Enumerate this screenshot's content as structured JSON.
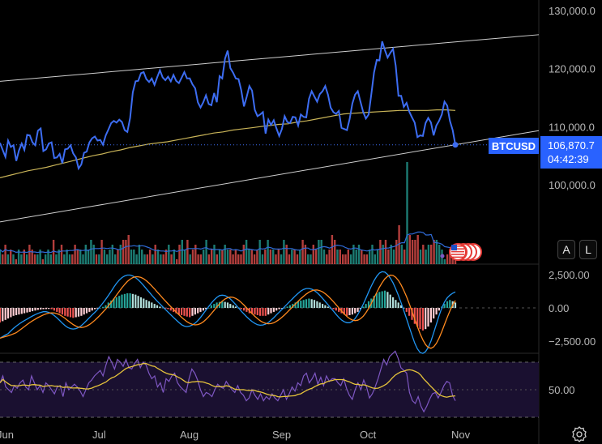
{
  "instrument": {
    "symbol": "BTCUSD",
    "last_price": "106,870.7",
    "countdown": "04:42:39"
  },
  "buttons": {
    "auto": "A",
    "log": "L"
  },
  "colors": {
    "price_line": "#3d6df2",
    "volume_up": "#26a69a",
    "volume_down": "#ef5350",
    "volume_ma": "#2f6bd8",
    "macd": "#2196f3",
    "signal": "#ff8a1f",
    "rsi": "#7e57c2",
    "rsi_ma": "#e5c33b",
    "long_ma": "#c9b458",
    "channel": "#cfcfcf"
  },
  "icons": {
    "settings": "settings-gear-icon",
    "event": "us-flag-event-icon"
  },
  "chart_data": [
    {
      "type": "line",
      "panel": "price",
      "x_labels": [
        "Jun",
        "Jul",
        "Aug",
        "Sep",
        "Oct",
        "Nov"
      ],
      "y_ticks": [
        "130,000.0",
        "120,000.0",
        "110,000.0",
        "100,000.0"
      ],
      "y_tick_values": [
        130000,
        120000,
        110000,
        100000
      ],
      "ylim": [
        86000,
        132000
      ],
      "grid": false,
      "series": [
        {
          "values": [
            107200,
            106000,
            104800,
            107600,
            106500,
            106800,
            104100,
            105900,
            107100,
            106000,
            108600,
            108500,
            107300,
            106800,
            109300,
            109700,
            105800,
            106100,
            107100,
            107300,
            104600,
            104700,
            105300,
            103700,
            106100,
            106200,
            106800,
            105400,
            104700,
            102800,
            103500,
            105500,
            105700,
            107300,
            108000,
            108300,
            107600,
            107700,
            106900,
            108500,
            109500,
            110600,
            111000,
            110700,
            111200,
            110800,
            109400,
            109100,
            111500,
            115900,
            117800,
            117900,
            119200,
            119400,
            118200,
            117700,
            118300,
            117200,
            118500,
            119700,
            118500,
            118000,
            118600,
            117800,
            118900,
            117900,
            117500,
            118400,
            119400,
            118300,
            118300,
            117300,
            116600,
            114200,
            113300,
            114200,
            115400,
            113900,
            113700,
            115800,
            114200,
            118700,
            118300,
            121700,
            123100,
            120100,
            119300,
            118300,
            118200,
            116300,
            113500,
            115100,
            117000,
            116200,
            112900,
            111800,
            112100,
            112500,
            108800,
            111200,
            110300,
            111100,
            109700,
            108400,
            109600,
            111800,
            110800,
            110600,
            111700,
            111600,
            110200,
            112100,
            111700,
            111600,
            114800,
            116100,
            115200,
            114300,
            115600,
            116100,
            117000,
            115500,
            113300,
            112500,
            112200,
            112700,
            109800,
            109600,
            109400,
            111300,
            114000,
            115500,
            116100,
            114300,
            112500,
            111400,
            112100,
            115600,
            119300,
            121500,
            121400,
            124700,
            123200,
            121900,
            122700,
            123400,
            120500,
            115300,
            115300,
            113400,
            114100,
            112600,
            111600,
            110700,
            108200,
            108500,
            108400,
            110600,
            111500,
            110700,
            108500,
            110200,
            111000,
            112100,
            114300,
            113600,
            111000,
            109400,
            106870
          ]
        }
      ]
    },
    {
      "type": "line",
      "panel": "price",
      "series": [
        {
          "values": [
            101200,
            101600,
            102000,
            102400,
            102700,
            103000,
            103400,
            103800,
            104200,
            104600,
            105000,
            105300,
            105700,
            106000,
            106400,
            106700,
            107000,
            107200,
            107400,
            107700,
            108000,
            108300,
            108600,
            108900,
            109100,
            109400,
            109600,
            109800,
            110000,
            110200,
            110400,
            110500,
            110800,
            111000,
            111300,
            111600,
            111900,
            112200,
            112300,
            112400,
            112500,
            112600,
            112700,
            112800,
            112800,
            112800,
            112800,
            112900,
            112900,
            112800
          ]
        }
      ]
    },
    {
      "type": "bar",
      "panel": "volume",
      "series": [
        {
          "values": [
            3,
            2,
            4,
            2,
            3,
            2,
            1,
            3,
            2,
            3,
            2,
            4,
            3,
            2,
            2,
            3,
            1,
            2,
            3,
            2,
            5,
            2,
            3,
            4,
            2,
            3,
            2,
            2,
            4,
            3,
            3,
            2,
            4,
            3,
            5,
            4,
            2,
            2,
            5,
            3,
            2,
            3,
            4,
            2,
            3,
            4,
            5,
            5,
            6,
            3,
            3,
            2,
            4,
            3,
            2,
            2,
            3,
            2,
            4,
            3,
            2,
            2,
            3,
            4,
            2,
            3,
            1,
            4,
            5,
            3,
            5,
            2,
            3,
            4,
            2,
            2,
            3,
            5,
            2,
            3,
            4,
            2,
            3,
            3,
            4,
            3,
            3,
            2,
            3,
            2,
            2,
            4,
            5,
            3,
            3,
            2,
            3,
            5,
            2,
            3,
            5,
            3,
            3,
            2,
            3,
            2,
            5,
            4,
            2,
            3,
            3,
            2,
            3,
            5,
            4,
            2,
            2,
            4,
            3,
            5,
            5,
            3,
            2,
            3,
            6,
            5,
            3,
            3,
            2,
            2,
            3,
            2,
            4,
            3,
            4,
            3,
            2,
            2,
            3,
            4,
            2,
            3,
            5,
            4,
            5,
            3,
            4,
            3,
            5,
            8,
            4,
            3,
            21,
            6,
            5,
            5,
            6,
            3,
            4,
            3,
            4,
            4,
            5,
            5,
            4,
            3,
            1,
            2,
            3,
            3,
            2
          ]
        }
      ]
    },
    {
      "type": "bar",
      "panel": "macd",
      "y_ticks": [
        "2,500.00",
        "0.00",
        "−2,500.00"
      ],
      "y_tick_values": [
        2500,
        0,
        -2500
      ],
      "ylim": [
        -3800,
        3800
      ],
      "series": [
        {
          "values": [
            -1100,
            -1000,
            -900,
            -800,
            -700,
            -600,
            -550,
            -500,
            -450,
            -400,
            -350,
            -300,
            -250,
            -200,
            -150,
            -120,
            -100,
            -90,
            -80,
            -100,
            -200,
            -300,
            -400,
            -500,
            -600,
            -650,
            -700,
            -750,
            -700,
            -650,
            -600,
            -500,
            -400,
            -300,
            -200,
            -100,
            -50,
            0,
            80,
            200,
            400,
            550,
            700,
            800,
            900,
            1000,
            1050,
            1100,
            1100,
            1050,
            1000,
            900,
            800,
            700,
            600,
            500,
            400,
            300,
            200,
            100,
            20,
            -50,
            -100,
            -200,
            -300,
            -400,
            -500,
            -550,
            -600,
            -650,
            -700,
            -600,
            -500,
            -400,
            -300,
            -200,
            -100,
            0,
            200,
            300,
            400,
            450,
            500,
            450,
            400,
            300,
            200,
            100,
            0,
            -100,
            -200,
            -300,
            -400,
            -450,
            -500,
            -550,
            -600,
            -600,
            -600,
            -500,
            -400,
            -300,
            -200,
            -100,
            -50,
            0,
            100,
            200,
            300,
            400,
            500,
            550,
            600,
            650,
            700,
            650,
            600,
            500,
            400,
            300,
            200,
            100,
            0,
            -100,
            -200,
            -300,
            -400,
            -500,
            -600,
            -550,
            -500,
            -400,
            -300,
            -100,
            100,
            300,
            500,
            700,
            900,
            1100,
            1200,
            1250,
            1300,
            1200,
            1000,
            800,
            600,
            400,
            200,
            0,
            -300,
            -600,
            -900,
            -1200,
            -1400,
            -1600,
            -1700,
            -1600,
            -1400,
            -1100,
            -800,
            -500,
            -200,
            100,
            300,
            500,
            600,
            500,
            400
          ]
        }
      ]
    },
    {
      "type": "line",
      "panel": "rsi",
      "y_ticks": [
        "50.00"
      ],
      "y_tick_values": [
        50
      ],
      "ylim": [
        20,
        88
      ],
      "series": [
        {
          "values": [
            55,
            60,
            52,
            50,
            48,
            53,
            51,
            55,
            57,
            52,
            50,
            60,
            55,
            50,
            53,
            48,
            55,
            53,
            50,
            47,
            52,
            53,
            45,
            55,
            50,
            52,
            54,
            52,
            49,
            45,
            50,
            55,
            57,
            60,
            62,
            64,
            60,
            68,
            74,
            70,
            65,
            72,
            70,
            67,
            72,
            66,
            65,
            69,
            72,
            66,
            70,
            68,
            62,
            58,
            60,
            52,
            55,
            48,
            58,
            56,
            60,
            62,
            55,
            52,
            50,
            48,
            58,
            65,
            62,
            57,
            50,
            45,
            48,
            47,
            45,
            50,
            54,
            52,
            51,
            56,
            53,
            50,
            48,
            53,
            48,
            46,
            42,
            44,
            50,
            46,
            43,
            47,
            42,
            45,
            43,
            47,
            44,
            42,
            46,
            50,
            43,
            47,
            52,
            49,
            55,
            53,
            60,
            62,
            55,
            58,
            62,
            54,
            59,
            53,
            60,
            56,
            58,
            58,
            55,
            53,
            58,
            51,
            46,
            43,
            50,
            55,
            50,
            57,
            52,
            44,
            47,
            52,
            58,
            65,
            72,
            68,
            74,
            76,
            78,
            73,
            66,
            64,
            62,
            48,
            42,
            40,
            45,
            38,
            34,
            38,
            43,
            47,
            48,
            44,
            48,
            53,
            56,
            55,
            46,
            42
          ]
        }
      ]
    }
  ]
}
